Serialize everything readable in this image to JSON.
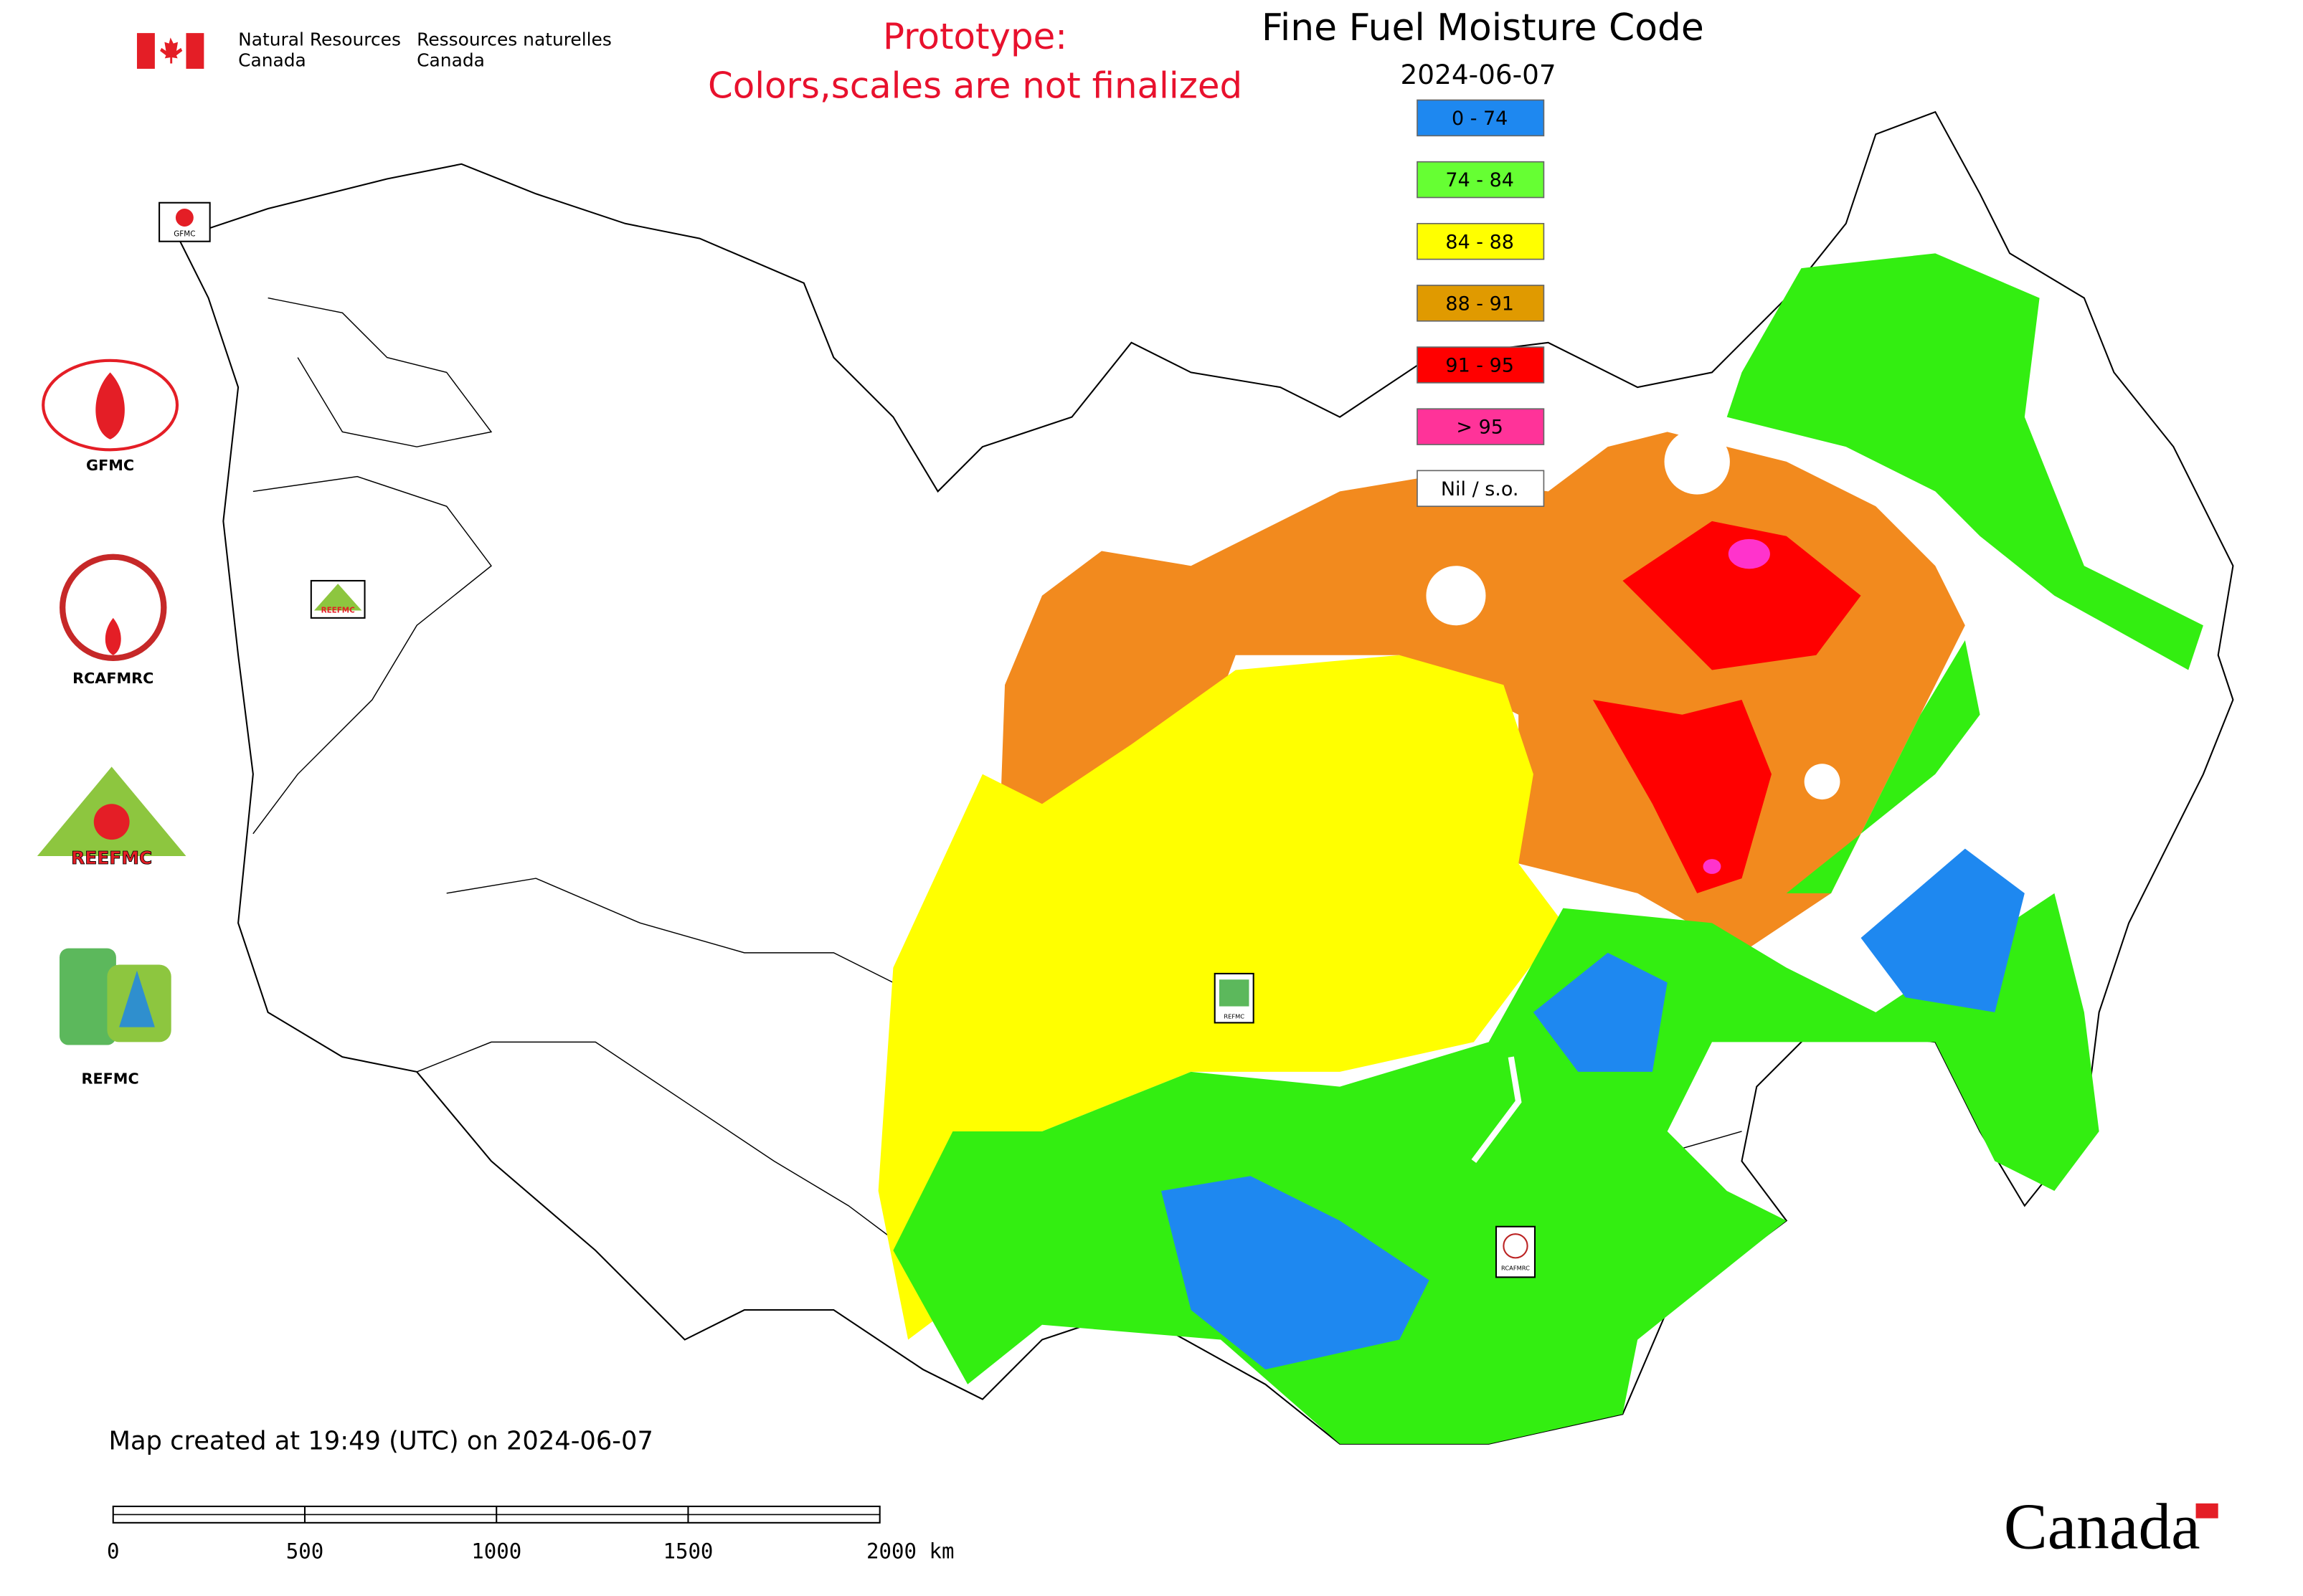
{
  "header": {
    "department_en": [
      "Natural Resources",
      "Canada"
    ],
    "department_fr": [
      "Ressources naturelles",
      "Canada"
    ],
    "notice": [
      "Prototype:",
      "Colors,scales are not finalized"
    ]
  },
  "map": {
    "title": "Fine Fuel Moisture Code",
    "date": "2024-06-07",
    "legend": [
      {
        "label": "0 - 74",
        "color": "#1e88f0"
      },
      {
        "label": "74 - 84",
        "color": "#66ff33"
      },
      {
        "label": "84 - 88",
        "color": "#ffff00"
      },
      {
        "label": "88 - 91",
        "color": "#e09a00"
      },
      {
        "label": "91 - 95",
        "color": "#ff0000"
      },
      {
        "label": "> 95",
        "color": "#ff3399"
      },
      {
        "label": "Nil / s.o.",
        "color": "#ffffff"
      }
    ],
    "created": "Map created at 19:49 (UTC) on 2024-06-07",
    "scale_bar": [
      "0",
      "500",
      "1000",
      "1500",
      "2000 km"
    ],
    "markers": [
      "GFMC",
      "REEFMC",
      "REFMC",
      "RCAFMRC"
    ]
  },
  "logos": [
    "GFMC",
    "RCAFMRC",
    "REEFMC",
    "REFMC"
  ],
  "footer": {
    "wordmark": "Canada"
  }
}
